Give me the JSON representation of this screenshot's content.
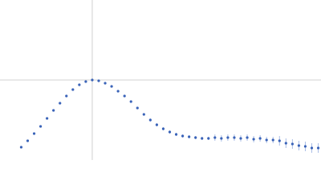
{
  "chart_data": {
    "type": "scatter",
    "x": [
      0.23,
      0.3,
      0.37,
      0.44,
      0.51,
      0.58,
      0.65,
      0.72,
      0.79,
      0.86,
      0.93,
      1.0,
      1.07,
      1.14,
      1.21,
      1.28,
      1.35,
      1.42,
      1.49,
      1.56,
      1.63,
      1.7,
      1.77,
      1.84,
      1.91,
      1.98,
      2.05,
      2.12,
      2.19,
      2.26,
      2.33,
      2.4,
      2.47,
      2.54,
      2.61,
      2.68,
      2.75,
      2.82,
      2.89,
      2.96,
      3.03,
      3.1,
      3.17,
      3.24,
      3.31,
      3.38,
      3.45
    ],
    "series": [
      {
        "color": "#3a63b8",
        "error_color": "#a9bde6",
        "values": [
          0.16,
          0.24,
          0.33,
          0.42,
          0.52,
          0.62,
          0.71,
          0.8,
          0.88,
          0.94,
          0.98,
          1.0,
          0.99,
          0.96,
          0.92,
          0.86,
          0.8,
          0.73,
          0.65,
          0.57,
          0.5,
          0.44,
          0.39,
          0.35,
          0.32,
          0.3,
          0.29,
          0.28,
          0.27,
          0.27,
          0.28,
          0.27,
          0.28,
          0.28,
          0.27,
          0.28,
          0.26,
          0.27,
          0.25,
          0.25,
          0.24,
          0.21,
          0.2,
          0.18,
          0.17,
          0.15,
          0.15
        ],
        "errors": [
          0.01,
          0.01,
          0.01,
          0.01,
          0.01,
          0.01,
          0.01,
          0.01,
          0.01,
          0.01,
          0.01,
          0.01,
          0.01,
          0.01,
          0.01,
          0.01,
          0.01,
          0.01,
          0.01,
          0.01,
          0.02,
          0.02,
          0.02,
          0.02,
          0.02,
          0.02,
          0.02,
          0.02,
          0.02,
          0.02,
          0.04,
          0.04,
          0.04,
          0.04,
          0.04,
          0.04,
          0.04,
          0.04,
          0.04,
          0.04,
          0.06,
          0.06,
          0.06,
          0.06,
          0.06,
          0.06,
          0.06
        ]
      }
    ],
    "xlim": [
      0,
      3.48
    ],
    "ylim": [
      0,
      2
    ],
    "reference_lines": {
      "x": 1,
      "y": 1,
      "color": "#d0d0d0"
    }
  }
}
